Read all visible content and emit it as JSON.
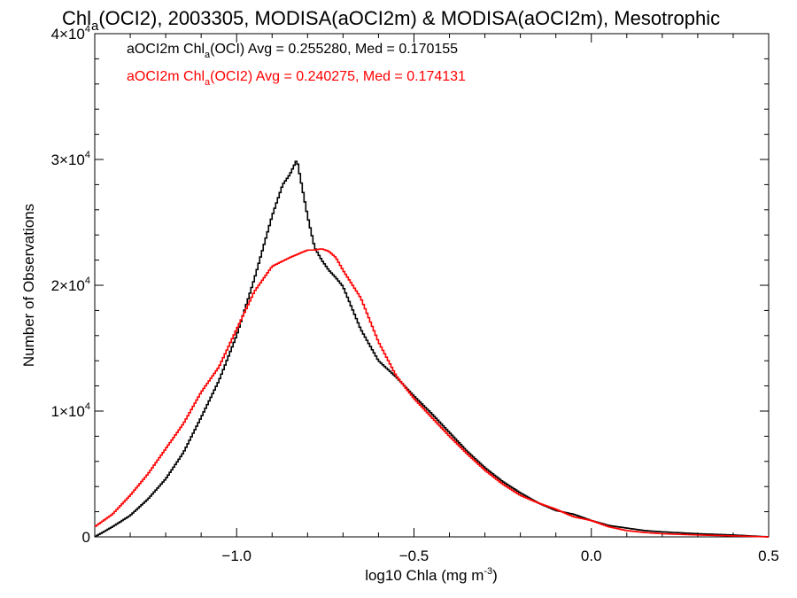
{
  "chart_data": {
    "type": "line",
    "title": {
      "part1": "Chl",
      "sub": "a",
      "part2": "(OCI2), 2003305, MODISA(aOCI2m) & MODISA(aOCI2m), Mesotrophic"
    },
    "xlabel": {
      "main": "log10 Chla (mg m",
      "sup": "-3",
      "close": ")"
    },
    "ylabel": "Number of Observations",
    "xlim": [
      -1.4,
      0.5
    ],
    "ylim": [
      0,
      40000
    ],
    "xticks": [
      {
        "v": -1.0,
        "label": "−1.0"
      },
      {
        "v": -0.5,
        "label": "−0.5"
      },
      {
        "v": 0.0,
        "label": "0.0"
      },
      {
        "v": 0.5,
        "label": "0.5"
      }
    ],
    "yticks": [
      {
        "v": 0,
        "label": "0",
        "sup": ""
      },
      {
        "v": 10000,
        "label": "1×10",
        "sup": "4"
      },
      {
        "v": 20000,
        "label": "2×10",
        "sup": "4"
      },
      {
        "v": 30000,
        "label": "3×10",
        "sup": "4"
      },
      {
        "v": 40000,
        "label": "4×10",
        "sup": "4"
      }
    ],
    "legend_position": "top-left",
    "series": [
      {
        "name": {
          "prefix": "aOCI2m Chl",
          "sub": "a",
          "suffix": "(OCI) Avg = 0.255280, Med = 0.170155"
        },
        "color": "#000000",
        "x": [
          -1.4,
          -1.35,
          -1.3,
          -1.25,
          -1.2,
          -1.15,
          -1.1,
          -1.05,
          -1.0,
          -0.95,
          -0.9,
          -0.87,
          -0.85,
          -0.83,
          -0.82,
          -0.8,
          -0.78,
          -0.76,
          -0.74,
          -0.72,
          -0.7,
          -0.65,
          -0.6,
          -0.55,
          -0.5,
          -0.45,
          -0.4,
          -0.35,
          -0.3,
          -0.25,
          -0.2,
          -0.15,
          -0.1,
          -0.05,
          0.0,
          0.05,
          0.1,
          0.15,
          0.2,
          0.3,
          0.4,
          0.5
        ],
        "y": [
          0,
          800,
          1700,
          3000,
          4600,
          6700,
          9500,
          12400,
          16000,
          20500,
          25500,
          28000,
          28800,
          30000,
          28500,
          25500,
          23000,
          22000,
          21200,
          20600,
          19900,
          16500,
          14000,
          12700,
          11200,
          9800,
          8300,
          6800,
          5500,
          4400,
          3500,
          2700,
          2100,
          1800,
          1300,
          900,
          700,
          500,
          400,
          250,
          150,
          0
        ]
      },
      {
        "name": {
          "prefix": "aOCI2m Chl",
          "sub": "a",
          "suffix": "(OCI2) Avg = 0.240275, Med = 0.174131"
        },
        "color": "#ff0000",
        "x": [
          -1.4,
          -1.35,
          -1.3,
          -1.25,
          -1.2,
          -1.15,
          -1.1,
          -1.05,
          -1.0,
          -0.95,
          -0.9,
          -0.85,
          -0.8,
          -0.78,
          -0.76,
          -0.74,
          -0.72,
          -0.7,
          -0.65,
          -0.6,
          -0.55,
          -0.5,
          -0.45,
          -0.4,
          -0.35,
          -0.3,
          -0.25,
          -0.2,
          -0.15,
          -0.1,
          -0.05,
          0.0,
          0.05,
          0.1,
          0.15,
          0.2,
          0.3,
          0.4,
          0.5
        ],
        "y": [
          800,
          1800,
          3300,
          5000,
          7000,
          9000,
          11500,
          13500,
          16500,
          19500,
          21500,
          22200,
          22800,
          22800,
          22900,
          22700,
          22200,
          21200,
          19000,
          15500,
          12800,
          11000,
          9500,
          8000,
          6600,
          5300,
          4200,
          3300,
          2700,
          2200,
          1600,
          1300,
          800,
          500,
          350,
          250,
          150,
          80,
          0
        ]
      }
    ]
  }
}
